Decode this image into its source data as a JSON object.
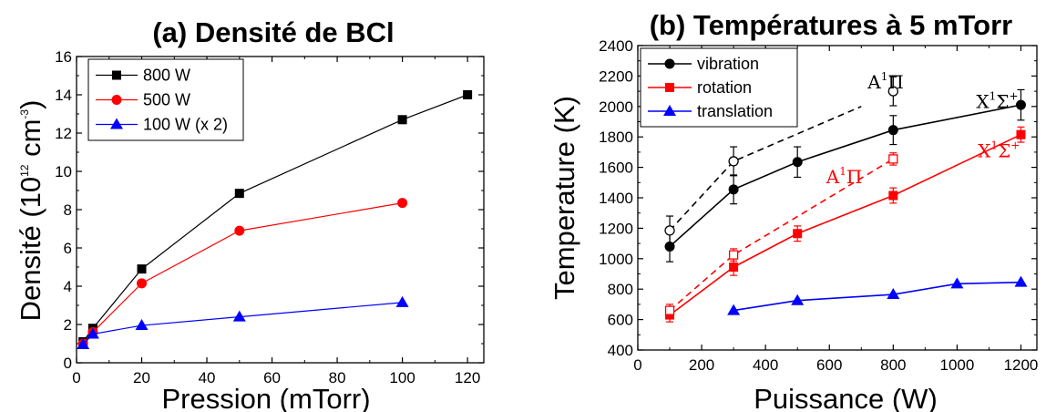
{
  "chart_data": [
    {
      "type": "line",
      "title": "(a) Densité de BCl",
      "xlabel": "Pression (mTorr)",
      "ylabel_main": "Densité (10",
      "ylabel_sup1": "12",
      "ylabel_mid": " cm",
      "ylabel_sup2": "-3",
      "ylabel_end": ")",
      "xlim": [
        0,
        125
      ],
      "ylim": [
        0,
        16
      ],
      "xticks": [
        0,
        20,
        40,
        60,
        80,
        100,
        120
      ],
      "yticks": [
        0,
        2,
        4,
        6,
        8,
        10,
        12,
        14,
        16
      ],
      "grid": false,
      "legend_position": "top-left",
      "series": [
        {
          "name": "800 W",
          "color": "#000000",
          "marker": "square",
          "x": [
            2,
            5,
            20,
            50,
            100,
            120
          ],
          "y": [
            1.1,
            1.8,
            4.9,
            8.85,
            12.7,
            14.0
          ]
        },
        {
          "name": "500 W",
          "color": "#ff0000",
          "marker": "circle",
          "x": [
            2,
            5,
            20,
            50,
            100
          ],
          "y": [
            1.0,
            1.6,
            4.15,
            6.9,
            8.35
          ]
        },
        {
          "name": "100 W (x 2)",
          "color": "#0000ff",
          "marker": "triangle",
          "x": [
            2,
            5,
            20,
            50,
            100
          ],
          "y": [
            0.95,
            1.5,
            1.95,
            2.4,
            3.15
          ]
        }
      ]
    },
    {
      "type": "line",
      "title": "(b) Températures à 5 mTorr",
      "xlabel": "Puissance (W)",
      "ylabel": "Temperature (K)",
      "xlim": [
        0,
        1250
      ],
      "ylim": [
        400,
        2400
      ],
      "xticks": [
        0,
        200,
        400,
        600,
        800,
        1000,
        1200
      ],
      "yticks": [
        400,
        600,
        800,
        1000,
        1200,
        1400,
        1600,
        1800,
        2000,
        2200,
        2400
      ],
      "grid": false,
      "legend_position": "top-left",
      "series": [
        {
          "name": "vibration",
          "color": "#000000",
          "marker": "circle",
          "x": [
            100,
            300,
            500,
            800,
            1200
          ],
          "y": [
            1080,
            1455,
            1635,
            1845,
            2010
          ],
          "err": [
            100,
            95,
            100,
            95,
            100
          ]
        },
        {
          "name": "rotation",
          "color": "#ff0000",
          "marker": "square",
          "x": [
            100,
            300,
            500,
            800,
            1200
          ],
          "y": [
            630,
            945,
            1165,
            1415,
            1815
          ],
          "err": [
            45,
            55,
            50,
            50,
            50
          ]
        },
        {
          "name": "translation",
          "color": "#0000ff",
          "marker": "triangle",
          "x": [
            300,
            500,
            800,
            1000,
            1200
          ],
          "y": [
            660,
            725,
            765,
            835,
            845
          ],
          "err": null
        },
        {
          "color": "#000000",
          "marker": "open-circle",
          "dashed": true,
          "x": [
            100,
            300,
            700
          ],
          "y": [
            1185,
            1640,
            2000
          ],
          "marker_x": [
            100,
            300,
            800
          ],
          "marker_y": [
            1185,
            1640,
            2100
          ],
          "err": [
            95,
            95,
            95
          ]
        },
        {
          "color": "#ff0000",
          "marker": "open-square",
          "dashed": true,
          "x": [
            100,
            300,
            800
          ],
          "y": [
            660,
            1025,
            1655
          ],
          "err": [
            40,
            40,
            40
          ]
        }
      ],
      "annotations": [
        {
          "base": "A",
          "sup": "1",
          "greek": "Π",
          "color": "#000000",
          "x": 720,
          "y": 2120
        },
        {
          "base": "X",
          "sup": "1",
          "greek": "Σ",
          "greek_sup": "+",
          "color": "#000000",
          "x": 1060,
          "y": 1990
        },
        {
          "base": "A",
          "sup": "1",
          "greek": "Π",
          "color": "#ff0000",
          "x": 590,
          "y": 1495
        },
        {
          "base": "X",
          "sup": "1",
          "greek": "Σ",
          "greek_sup": "+",
          "color": "#ff0000",
          "x": 1065,
          "y": 1665
        }
      ]
    }
  ]
}
